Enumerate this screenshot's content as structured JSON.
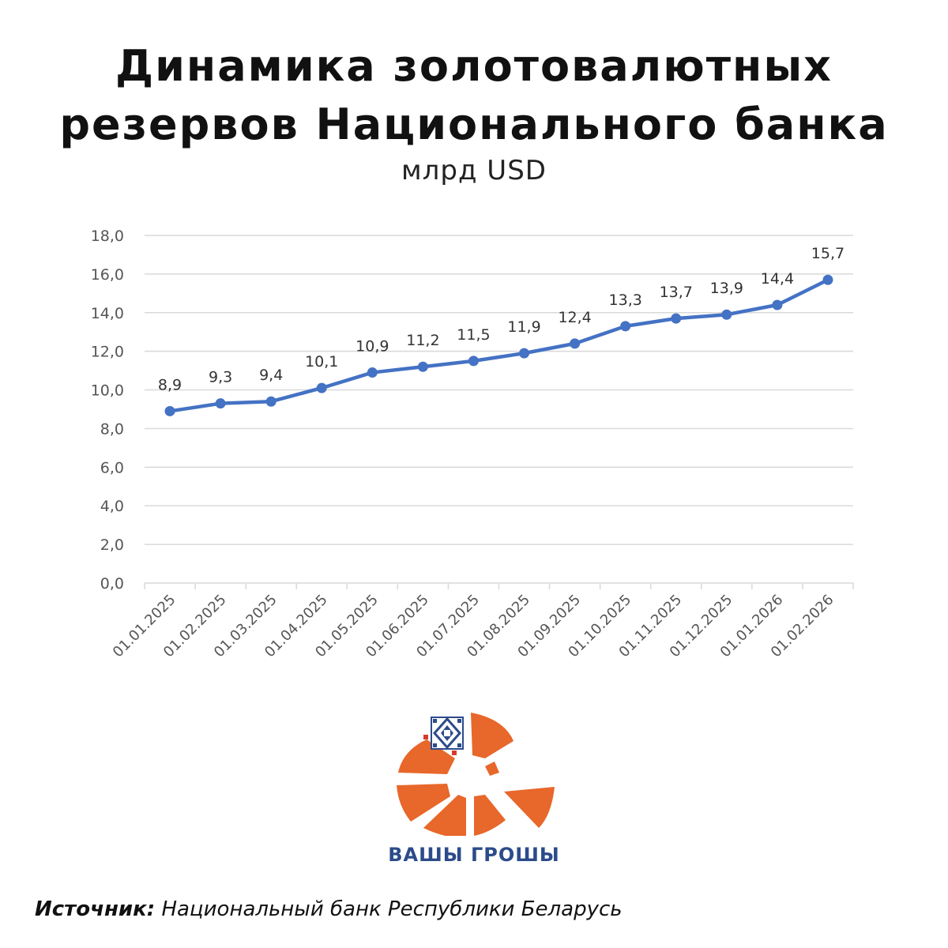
{
  "header": {
    "title_line1": "Динамика золотовалютных",
    "title_line2": "резервов Национального банка",
    "subtitle": "млрд USD"
  },
  "chart_data": {
    "type": "line",
    "title": "Динамика золотовалютных резервов Национального банка",
    "subtitle": "млрд USD",
    "categories": [
      "01.01.2025",
      "01.02.2025",
      "01.03.2025",
      "01.04.2025",
      "01.05.2025",
      "01.06.2025",
      "01.07.2025",
      "01.08.2025",
      "01.09.2025",
      "01.10.2025",
      "01.11.2025",
      "01.12.2025",
      "01.01.2026",
      "01.02.2026"
    ],
    "values": [
      8.9,
      9.3,
      9.4,
      10.1,
      10.9,
      11.2,
      11.5,
      11.9,
      12.4,
      13.3,
      13.7,
      13.9,
      14.4,
      15.7
    ],
    "data_labels": [
      "8,9",
      "9,3",
      "9,4",
      "10,1",
      "10,9",
      "11,2",
      "11,5",
      "11,9",
      "12,4",
      "13,3",
      "13,7",
      "13,9",
      "14,4",
      "15,7"
    ],
    "y_ticks": [
      "0,0",
      "2,0",
      "4,0",
      "6,0",
      "8,0",
      "10,0",
      "12,0",
      "14,0",
      "16,0",
      "18,0"
    ],
    "ylim": [
      0,
      18
    ],
    "grid": true,
    "legend": "none",
    "line_color": "#4472c4"
  },
  "brand": {
    "name": "ВАШЫ ГРОШЫ",
    "icon": "vashy-groshy-logo-icon",
    "accent": "#e8672a",
    "text_color": "#2c4b8a"
  },
  "source": {
    "label": "Источник:",
    "text": "Национальный банк Республики Беларусь"
  }
}
